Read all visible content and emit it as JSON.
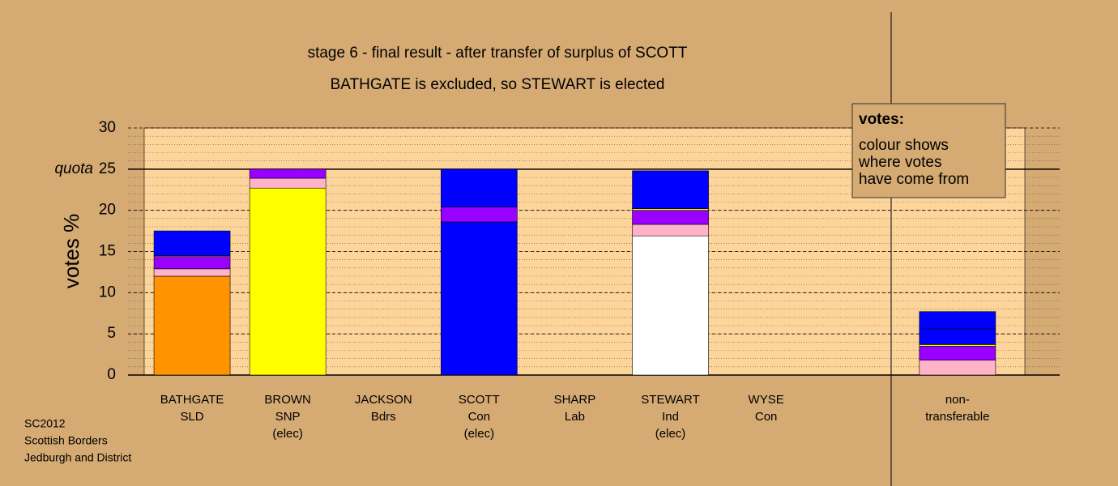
{
  "chart_data": {
    "type": "stacked-bar",
    "title": "stage 6 - final result - after transfer of surplus of SCOTT",
    "subtitle": "BATHGATE is excluded, so STEWART is elected",
    "ylabel": "votes %",
    "categories": [
      [
        "BATHGATE",
        "SLD"
      ],
      [
        "BROWN",
        "SNP",
        "(elec)"
      ],
      [
        "JACKSON",
        "Bdrs"
      ],
      [
        "SCOTT",
        "Con",
        "(elec)"
      ],
      [
        "SHARP",
        "Lab"
      ],
      [
        "STEWART",
        "Ind",
        "(elec)"
      ],
      [
        "WYSE",
        "Con"
      ],
      null,
      [
        "non-",
        "transferable"
      ]
    ],
    "series": [
      {
        "color": "#ff9300",
        "values": [
          12.0,
          0,
          0,
          0,
          0,
          0,
          0,
          null,
          0
        ]
      },
      {
        "color": "#ffff00",
        "values": [
          0,
          22.7,
          0,
          0,
          0,
          0,
          0,
          null,
          0
        ]
      },
      {
        "color": "#0000ff",
        "values": [
          0,
          0,
          0,
          18.6,
          0,
          0,
          0,
          null,
          0
        ]
      },
      {
        "color": "#ffffff",
        "values": [
          0,
          0,
          0,
          0,
          0,
          16.9,
          0,
          null,
          0
        ]
      },
      {
        "color": "#ffb3c8",
        "values": [
          0.9,
          1.2,
          0,
          0,
          0,
          1.4,
          0,
          null,
          1.8
        ]
      },
      {
        "color": "#9900ff",
        "values": [
          1.5,
          1.1,
          0,
          1.8,
          0,
          1.7,
          0,
          null,
          1.7
        ]
      },
      {
        "color": "#ffff00",
        "values": [
          0.1,
          0,
          0,
          0,
          0,
          0.2,
          0,
          null,
          0.2
        ]
      },
      {
        "color": "#0000ff",
        "values": [
          3.0,
          0,
          0,
          4.6,
          0,
          4.6,
          0,
          null,
          1.9
        ]
      },
      {
        "color": "#0000ff",
        "values": [
          0,
          0,
          0,
          0,
          0,
          0,
          0,
          null,
          2.1
        ]
      }
    ],
    "ylim": [
      0,
      30
    ],
    "yticks": [
      0,
      5,
      10,
      15,
      20,
      25,
      30
    ],
    "minor_grid_step": 1,
    "quota": 25,
    "quota_label": "quota",
    "note": {
      "title": "votes:",
      "lines": [
        "colour shows",
        "where votes",
        "have come from"
      ]
    },
    "footnote": [
      "SC2012",
      "Scottish Borders",
      "Jedburgh and District"
    ]
  }
}
